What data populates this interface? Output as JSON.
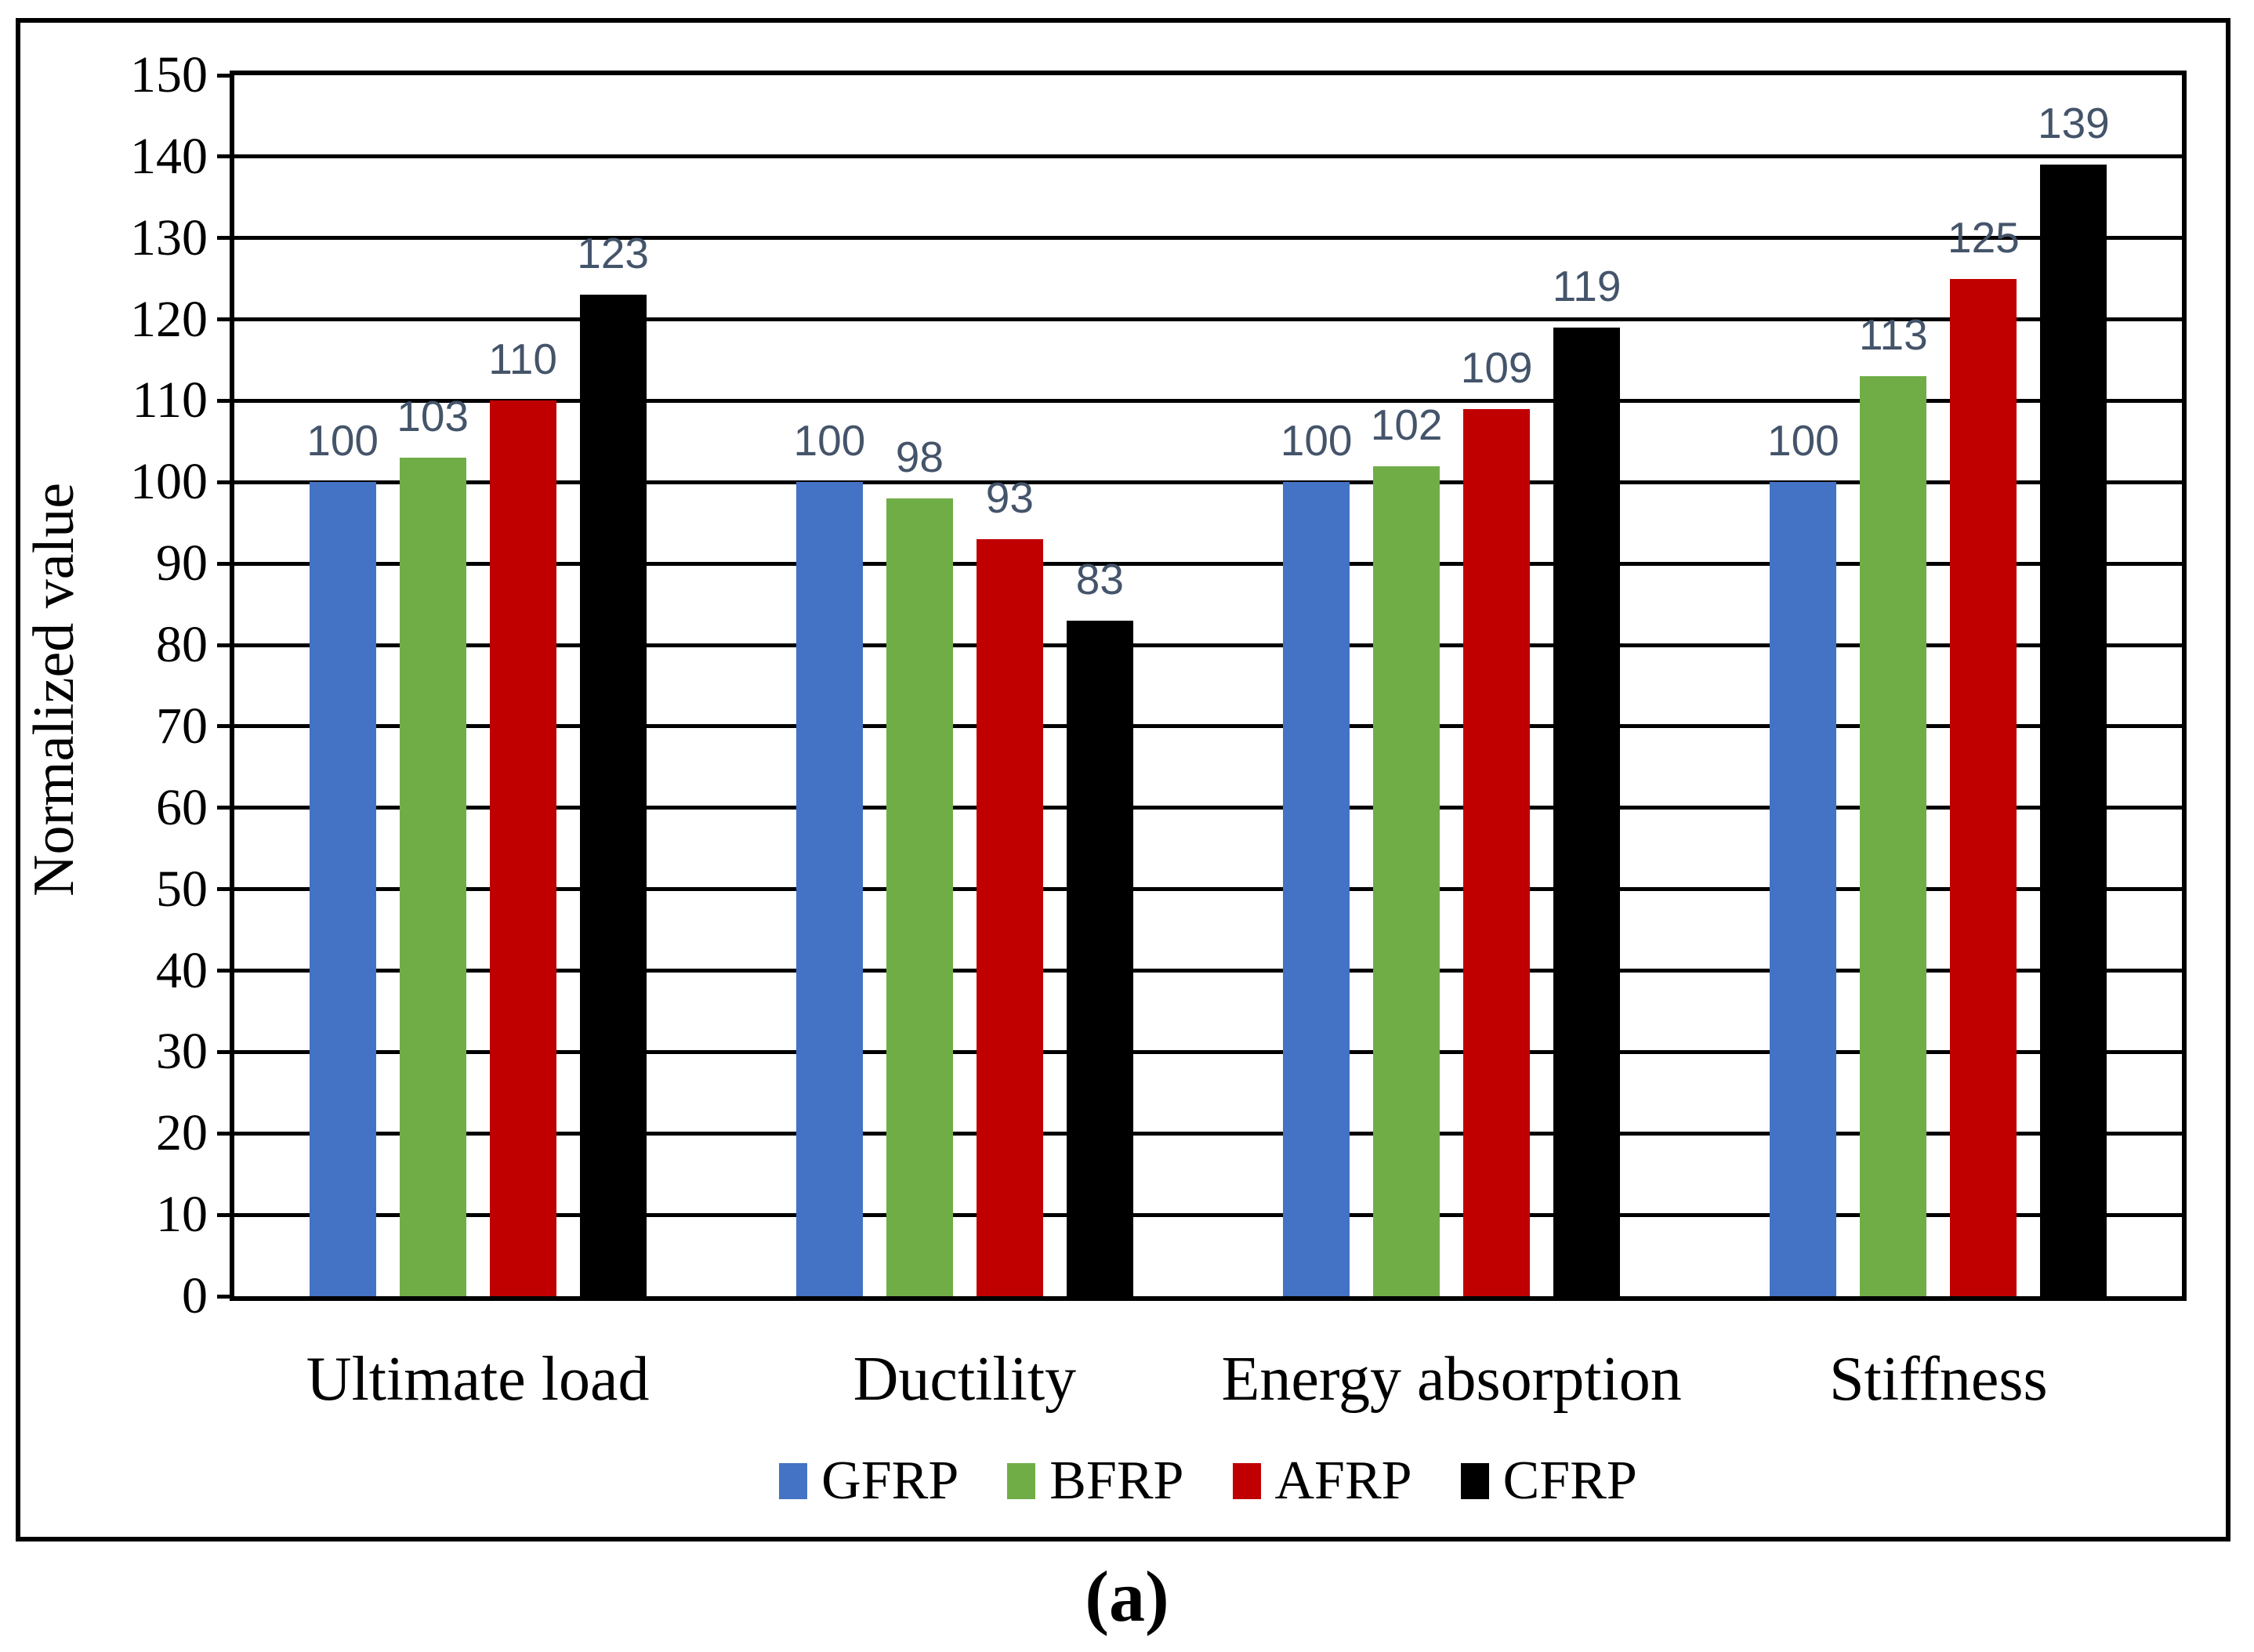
{
  "figure": {
    "caption": "(a)",
    "y_axis_title": "Normalized value"
  },
  "chart_data": {
    "type": "bar",
    "title": "",
    "xlabel": "",
    "ylabel": "Normalized value",
    "categories": [
      "Ultimate load",
      "Ductility",
      "Energy absorption",
      "Stiffness"
    ],
    "series": [
      {
        "name": "GFRP",
        "color": "#4472C4",
        "values": [
          100,
          100,
          100,
          100
        ]
      },
      {
        "name": "BFRP",
        "color": "#70AD47",
        "values": [
          103,
          98,
          102,
          113
        ]
      },
      {
        "name": "AFRP",
        "color": "#C00000",
        "values": [
          110,
          93,
          109,
          125
        ]
      },
      {
        "name": "CFRP",
        "color": "#000000",
        "values": [
          123,
          83,
          119,
          139
        ]
      }
    ],
    "y_ticks": [
      0,
      10,
      20,
      30,
      40,
      50,
      60,
      70,
      80,
      90,
      100,
      110,
      120,
      130,
      140,
      150
    ],
    "ylim": [
      0,
      150
    ],
    "grid": true,
    "gridline_color": "#000000",
    "data_labels": true,
    "data_label_color": "#44546A",
    "legend_position": "bottom",
    "legend": [
      "GFRP",
      "BFRP",
      "AFRP",
      "CFRP"
    ]
  }
}
